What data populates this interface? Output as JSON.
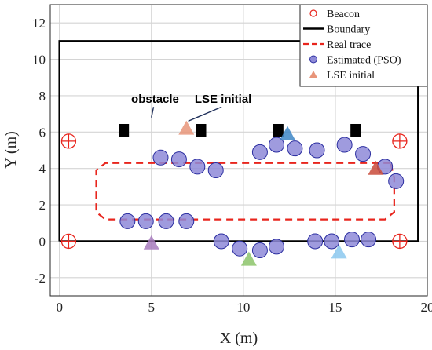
{
  "chart_data": {
    "type": "scatter",
    "xlabel": "X (m)",
    "ylabel": "Y (m)",
    "xlim": [
      -0.5,
      20
    ],
    "ylim": [
      -3,
      13
    ],
    "xticks": [
      0,
      5,
      10,
      15,
      20
    ],
    "yticks": [
      -2,
      0,
      2,
      4,
      6,
      8,
      10,
      12
    ],
    "grid": true,
    "legend_position": "top-right",
    "legend": [
      {
        "key": "beacon",
        "label": "Beacon"
      },
      {
        "key": "boundary",
        "label": "Boundary"
      },
      {
        "key": "real_trace",
        "label": "Real trace"
      },
      {
        "key": "estimated",
        "label": "Estimated (PSO)"
      },
      {
        "key": "lse_initial",
        "label": "LSE initial"
      }
    ],
    "annotations": [
      {
        "text": "obstacle",
        "x": 5.2,
        "y": 7.6,
        "arrow_to": [
          5.0,
          6.8
        ]
      },
      {
        "text": "LSE initial",
        "x": 8.9,
        "y": 7.6,
        "arrow_to": [
          7.0,
          6.6
        ]
      }
    ],
    "beacons": [
      [
        0.5,
        5.5
      ],
      [
        18.5,
        5.5
      ],
      [
        0.5,
        0.0
      ],
      [
        18.5,
        0.0
      ]
    ],
    "boundary": [
      [
        0,
        0
      ],
      [
        19.5,
        0
      ],
      [
        19.5,
        11
      ],
      [
        0,
        11
      ],
      [
        0,
        0
      ]
    ],
    "obstacles": [
      [
        3.5,
        6.1
      ],
      [
        7.7,
        6.1
      ],
      [
        11.9,
        6.1
      ],
      [
        16.1,
        6.1
      ]
    ],
    "real_trace": [
      [
        18.0,
        4.3
      ],
      [
        2.5,
        4.3
      ],
      [
        2.0,
        3.9
      ],
      [
        2.0,
        1.6
      ],
      [
        2.5,
        1.2
      ],
      [
        17.7,
        1.2
      ],
      [
        18.2,
        1.6
      ],
      [
        18.2,
        3.5
      ]
    ],
    "estimated": [
      [
        5.5,
        4.6
      ],
      [
        6.5,
        4.5
      ],
      [
        7.5,
        4.1
      ],
      [
        8.5,
        3.9
      ],
      [
        10.9,
        4.9
      ],
      [
        11.8,
        5.3
      ],
      [
        12.8,
        5.1
      ],
      [
        14.0,
        5.0
      ],
      [
        15.5,
        5.3
      ],
      [
        16.5,
        4.8
      ],
      [
        17.7,
        4.1
      ],
      [
        18.3,
        3.3
      ],
      [
        3.7,
        1.1
      ],
      [
        4.7,
        1.1
      ],
      [
        5.8,
        1.1
      ],
      [
        6.9,
        1.1
      ],
      [
        8.8,
        0.0
      ],
      [
        9.8,
        -0.4
      ],
      [
        10.9,
        -0.5
      ],
      [
        11.8,
        -0.3
      ],
      [
        13.9,
        0.0
      ],
      [
        14.8,
        0.0
      ],
      [
        15.9,
        0.1
      ],
      [
        16.8,
        0.1
      ]
    ],
    "lse_initial": [
      {
        "x": 5.0,
        "y": -0.1,
        "color": "#a77bbd"
      },
      {
        "x": 6.9,
        "y": 6.2,
        "color": "#e8957a"
      },
      {
        "x": 10.3,
        "y": -1.0,
        "color": "#8cc46a"
      },
      {
        "x": 12.4,
        "y": 5.9,
        "color": "#3d86c6"
      },
      {
        "x": 15.2,
        "y": -0.6,
        "color": "#8bc8ee"
      },
      {
        "x": 17.2,
        "y": 4.0,
        "color": "#c94a3a"
      }
    ],
    "colors": {
      "beacon": "#e8251d",
      "boundary": "#000000",
      "real_trace": "#e8251d",
      "estimated_fill": "#8e8ad8",
      "estimated_stroke": "#2b2ea0",
      "obstacle": "#000000",
      "grid": "#d4d4d4"
    }
  }
}
